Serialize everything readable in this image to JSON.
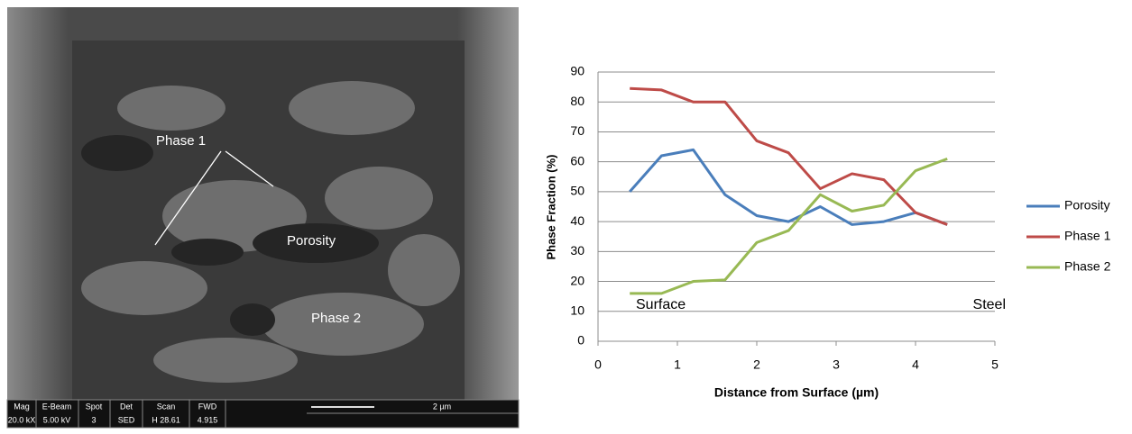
{
  "sem_image": {
    "labels": [
      "Phase 1",
      "Porosity",
      "Phase 2"
    ],
    "info_bar": [
      [
        "Mag",
        "20.0 kX"
      ],
      [
        "E-Beam",
        "5.00 kV"
      ],
      [
        "Spot",
        "3"
      ],
      [
        "Det",
        "SED"
      ],
      [
        "Scan",
        "H 28.61"
      ],
      [
        "FWD",
        "4.915"
      ]
    ],
    "scale_bar": "2 µm"
  },
  "chart_data": {
    "type": "line",
    "x_label": "Distance from Surface (µm)",
    "y_label": "Phase Fraction (%)",
    "x": [
      0.4,
      0.8,
      1.2,
      1.6,
      2.0,
      2.4,
      2.8,
      3.2,
      3.6,
      4.0,
      4.4
    ],
    "series": [
      {
        "name": "Porosity",
        "color": "#4a7ebb",
        "values": [
          50,
          62,
          64,
          49,
          42,
          40,
          45,
          39,
          40,
          43,
          39
        ]
      },
      {
        "name": "Phase 1",
        "color": "#be4b48",
        "values": [
          84.5,
          84,
          80,
          80,
          67,
          63,
          51,
          56,
          54,
          43,
          39
        ]
      },
      {
        "name": "Phase 2",
        "color": "#98b954",
        "values": [
          16,
          16,
          20,
          20.5,
          33,
          37,
          49,
          43.5,
          45.5,
          57,
          61
        ]
      }
    ],
    "annotations": [
      "Surface",
      "Steel"
    ],
    "xlim": [
      0,
      5
    ],
    "xticks": [
      0,
      1,
      2,
      3,
      4,
      5
    ],
    "ylim": [
      0,
      90
    ],
    "yticks": [
      0,
      10,
      20,
      30,
      40,
      50,
      60,
      70,
      80,
      90
    ],
    "grid": true,
    "legend": "right"
  }
}
